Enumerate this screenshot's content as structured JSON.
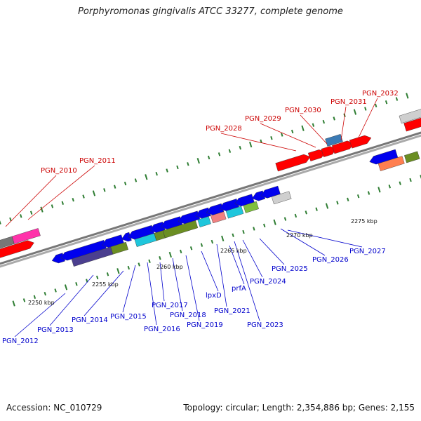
{
  "title": "Porphyromonas gingivalis ATCC 33277, complete genome",
  "footer": {
    "accession": "Accession: NC_010729",
    "summary": "Topology: circular; Length: 2,354,886 bp; Genes: 2,155"
  },
  "colors": {
    "forward_label": "#cc0000",
    "reverse_label": "#0000cc",
    "backbone": "#888888",
    "tick": "#2e7d32"
  },
  "scale_labels": [
    "2250 kbp",
    "2255 kbp",
    "2260 kbp",
    "2265 kbp",
    "2270 kbp",
    "2275 kbp"
  ],
  "forward_genes": [
    "PGN_2010",
    "PGN_2011",
    "PGN_2028",
    "PGN_2029",
    "PGN_2030",
    "PGN_2031",
    "PGN_2032"
  ],
  "reverse_genes": [
    "PGN_2012",
    "PGN_2013",
    "PGN_2014",
    "PGN_2015",
    "PGN_2016",
    "PGN_2017",
    "PGN_2018",
    "PGN_2019",
    "lpxD",
    "PGN_2021",
    "prfA",
    "PGN_2023",
    "PGN_2024",
    "PGN_2025",
    "PGN_2026",
    "PGN_2027"
  ]
}
